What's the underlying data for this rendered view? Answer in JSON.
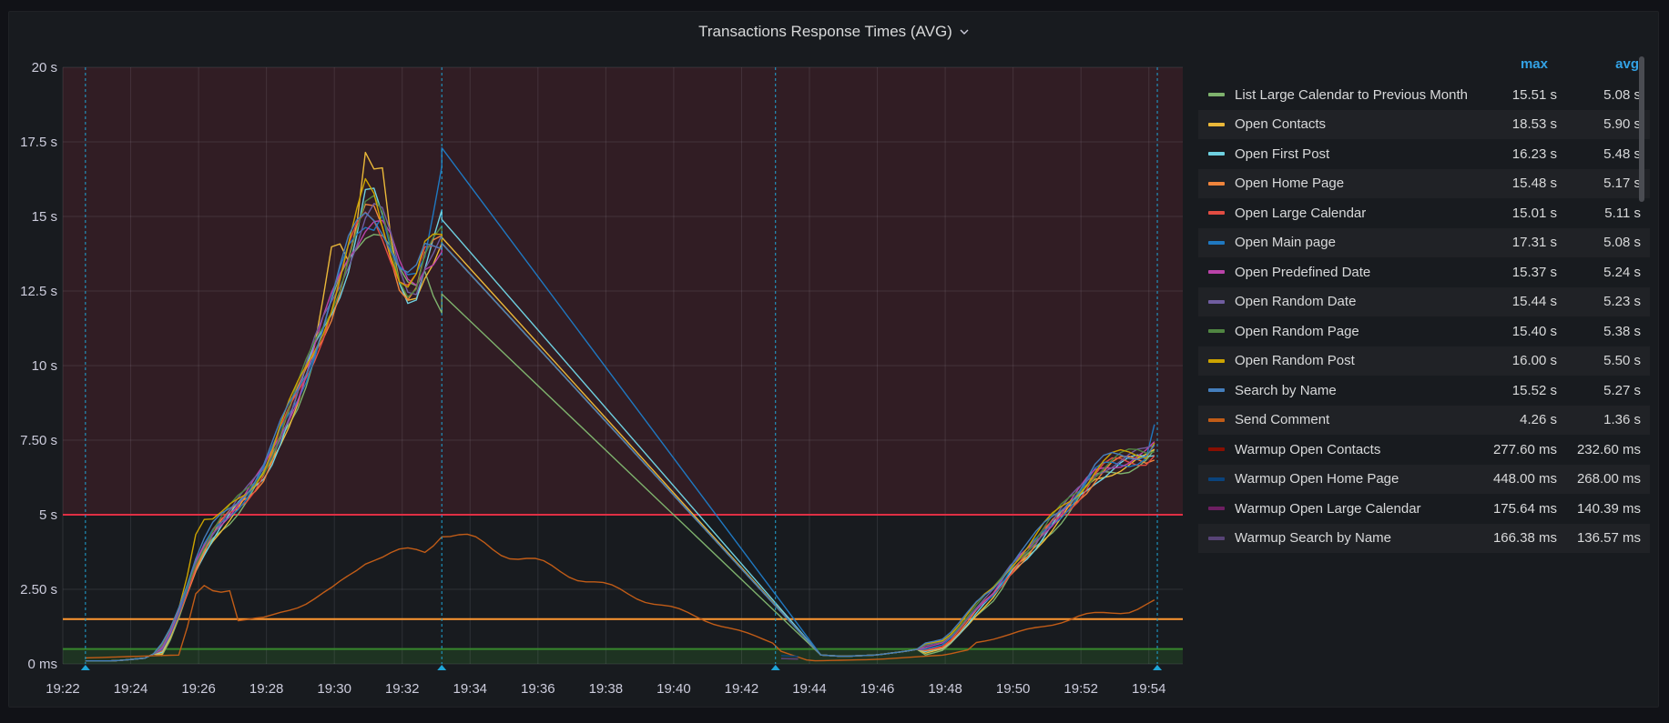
{
  "panel": {
    "title": "Transactions Response Times (AVG)",
    "menu_icon": "chevron-down-icon"
  },
  "legend": {
    "columns": {
      "max": "max",
      "avg": "avg"
    },
    "items": [
      {
        "name": "List Large Calendar to Previous Month",
        "max": "15.51 s",
        "avg": "5.08 s",
        "color": "#7eb26d"
      },
      {
        "name": "Open Contacts",
        "max": "18.53 s",
        "avg": "5.90 s",
        "color": "#eab839"
      },
      {
        "name": "Open First Post",
        "max": "16.23 s",
        "avg": "5.48 s",
        "color": "#6ed0e0"
      },
      {
        "name": "Open Home Page",
        "max": "15.48 s",
        "avg": "5.17 s",
        "color": "#ef843c"
      },
      {
        "name": "Open Large Calendar",
        "max": "15.01 s",
        "avg": "5.11 s",
        "color": "#e24d42"
      },
      {
        "name": "Open Main page",
        "max": "17.31 s",
        "avg": "5.08 s",
        "color": "#1f78c1"
      },
      {
        "name": "Open Predefined Date",
        "max": "15.37 s",
        "avg": "5.24 s",
        "color": "#ba43a9"
      },
      {
        "name": "Open Random Date",
        "max": "15.44 s",
        "avg": "5.23 s",
        "color": "#705da0"
      },
      {
        "name": "Open Random Page",
        "max": "15.40 s",
        "avg": "5.38 s",
        "color": "#508642"
      },
      {
        "name": "Open Random Post",
        "max": "16.00 s",
        "avg": "5.50 s",
        "color": "#cca300"
      },
      {
        "name": "Search by Name",
        "max": "15.52 s",
        "avg": "5.27 s",
        "color": "#447ebc"
      },
      {
        "name": "Send Comment",
        "max": "4.26 s",
        "avg": "1.36 s",
        "color": "#c15c17"
      },
      {
        "name": "Warmup Open Contacts",
        "max": "277.60 ms",
        "avg": "232.60 ms",
        "color": "#890f02"
      },
      {
        "name": "Warmup Open Home Page",
        "max": "448.00 ms",
        "avg": "268.00 ms",
        "color": "#0a437c"
      },
      {
        "name": "Warmup Open Large Calendar",
        "max": "175.64 ms",
        "avg": "140.39 ms",
        "color": "#6d1f62"
      },
      {
        "name": "Warmup Search by Name",
        "max": "166.38 ms",
        "avg": "136.57 ms",
        "color": "#584477"
      }
    ]
  },
  "chart_data": {
    "type": "line",
    "title": "Transactions Response Times (AVG)",
    "x_tick_labels": [
      "19:22",
      "19:24",
      "19:26",
      "19:28",
      "19:30",
      "19:32",
      "19:34",
      "19:36",
      "19:38",
      "19:40",
      "19:42",
      "19:44",
      "19:46",
      "19:48",
      "19:50",
      "19:52",
      "19:54"
    ],
    "y_tick_labels": [
      "0 ms",
      "2.50 s",
      "5 s",
      "7.50 s",
      "10 s",
      "12.5 s",
      "15 s",
      "17.5 s",
      "20 s"
    ],
    "y_unit": "s",
    "ylim": [
      0,
      20
    ],
    "xlim": [
      "19:22",
      "19:55"
    ],
    "grid": true,
    "legend_placement": "right",
    "thresholds": [
      {
        "value": 0.5,
        "color": "#37872d"
      },
      {
        "value": 1.5,
        "color": "#ff9830"
      },
      {
        "value": 5,
        "color": "#e02f44"
      }
    ],
    "annotations": [
      "19:22:40",
      "19:33:10",
      "19:43:00",
      "19:54:15"
    ],
    "main_profile": [
      [
        "19:22:40",
        0.1
      ],
      [
        "19:23:30",
        0.1
      ],
      [
        "19:24:30",
        0.2
      ],
      [
        "19:25:00",
        0.6
      ],
      [
        "19:25:30",
        2.0
      ],
      [
        "19:26:00",
        3.6
      ],
      [
        "19:26:30",
        4.6
      ],
      [
        "19:27:00",
        5.2
      ],
      [
        "19:27:30",
        5.8
      ],
      [
        "19:28:00",
        6.6
      ],
      [
        "19:28:30",
        8.0
      ],
      [
        "19:29:00",
        9.3
      ],
      [
        "19:29:30",
        10.8
      ],
      [
        "19:30:00",
        12.3
      ],
      [
        "19:30:30",
        14.0
      ],
      [
        "19:31:00",
        15.2
      ],
      [
        "19:31:20",
        15.0
      ],
      [
        "19:31:40",
        14.0
      ],
      [
        "19:32:00",
        12.8
      ],
      [
        "19:32:20",
        12.5
      ],
      [
        "19:32:40",
        13.6
      ],
      [
        "19:33:10",
        14.1
      ],
      [
        "19:44:20",
        0.3
      ],
      [
        "19:45:00",
        0.25
      ],
      [
        "19:46:00",
        0.3
      ],
      [
        "19:47:00",
        0.45
      ],
      [
        "19:48:00",
        0.7
      ],
      [
        "19:48:30",
        1.3
      ],
      [
        "19:49:00",
        2.0
      ],
      [
        "19:49:30",
        2.5
      ],
      [
        "19:50:00",
        3.3
      ],
      [
        "19:50:30",
        3.9
      ],
      [
        "19:51:00",
        4.6
      ],
      [
        "19:51:30",
        5.2
      ],
      [
        "19:52:00",
        5.8
      ],
      [
        "19:52:30",
        6.5
      ],
      [
        "19:53:00",
        6.8
      ],
      [
        "19:53:30",
        6.9
      ],
      [
        "19:54:00",
        7.0
      ],
      [
        "19:54:15",
        7.3
      ]
    ],
    "series_overrides": {
      "Open Contacts": [
        [
          "19:30:00",
          14.5
        ],
        [
          "19:31:00",
          18.5
        ],
        [
          "19:31:30",
          17.8
        ],
        [
          "19:32:00",
          12.3
        ],
        [
          "19:33:10",
          14.3
        ]
      ],
      "Open Main page": [
        [
          "19:31:30",
          16.0
        ],
        [
          "19:33:10",
          17.3
        ],
        [
          "19:44:20",
          0.3
        ],
        [
          "19:54:15",
          8.4
        ]
      ],
      "Open First Post": [
        [
          "19:31:00",
          16.2
        ],
        [
          "19:33:10",
          14.9
        ]
      ],
      "Open Random Post": [
        [
          "19:26:00",
          4.8
        ],
        [
          "19:31:00",
          16.0
        ],
        [
          "19:54:15",
          7.8
        ]
      ],
      "List Large Calendar to Previous Month": [
        [
          "19:33:10",
          12.4
        ]
      ]
    },
    "send_comment_profile": [
      [
        "19:22:40",
        0.2
      ],
      [
        "19:25:30",
        0.3
      ],
      [
        "19:26:00",
        2.4
      ],
      [
        "19:26:30",
        2.2
      ],
      [
        "19:27:00",
        2.4
      ],
      [
        "19:27:10",
        1.3
      ],
      [
        "19:28:00",
        1.3
      ],
      [
        "19:29:00",
        1.8
      ],
      [
        "19:30:00",
        2.3
      ],
      [
        "19:30:30",
        2.8
      ],
      [
        "19:31:00",
        3.4
      ],
      [
        "19:32:00",
        3.5
      ],
      [
        "19:32:40",
        3.6
      ],
      [
        "19:33:10",
        4.26
      ],
      [
        "19:44:00",
        0.1
      ],
      [
        "19:46:00",
        0.15
      ],
      [
        "19:48:00",
        0.3
      ],
      [
        "19:50:00",
        0.8
      ],
      [
        "19:52:00",
        1.4
      ],
      [
        "19:53:30",
        1.6
      ],
      [
        "19:54:15",
        1.9
      ]
    ]
  }
}
